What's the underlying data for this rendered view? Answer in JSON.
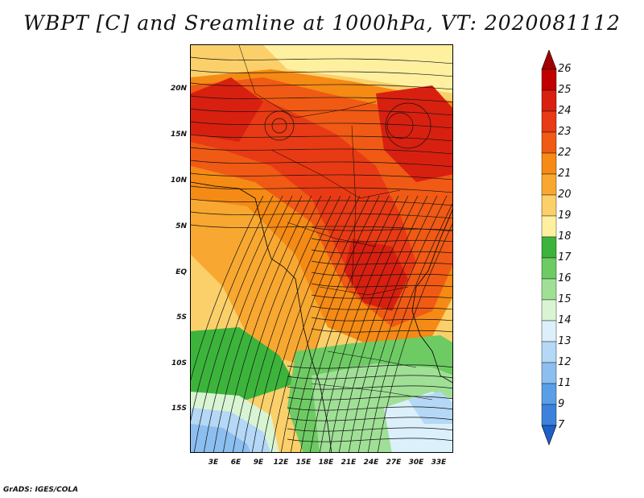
{
  "title": "WBPT [C] and Sreamline at 1000hPa, VT: 2020081112",
  "footer": "GrADS: IGES/COLA",
  "map": {
    "variable": "WBPT [C]",
    "overlay": "Streamline",
    "level": "1000hPa",
    "valid_time": "2020081112",
    "lat_labels": [
      "20N",
      "15N",
      "10N",
      "5N",
      "EQ",
      "5S",
      "10S",
      "15S"
    ],
    "lon_labels": [
      "3E",
      "6E",
      "9E",
      "12E",
      "15E",
      "18E",
      "21E",
      "24E",
      "27E",
      "30E",
      "33E"
    ],
    "lat_range": [
      -19.5,
      24.5
    ],
    "lon_range": [
      0,
      35
    ]
  },
  "colorbar": {
    "labels": [
      "26",
      "25",
      "24",
      "23",
      "22",
      "21",
      "20",
      "19",
      "18",
      "17",
      "16",
      "15",
      "14",
      "13",
      "12",
      "11",
      "9",
      "7"
    ],
    "colors": {
      "above": "#a00000",
      "c26": "#c00000",
      "c25": "#d82010",
      "c24": "#e83a14",
      "c23": "#f05a14",
      "c22": "#f58a14",
      "c21": "#f8a830",
      "c20": "#fbd06a",
      "c19": "#fff0a0",
      "c18": "#3cb43c",
      "c17": "#6ecb64",
      "c16": "#a0e096",
      "c15": "#d8f4d2",
      "c14": "#dcf0fb",
      "c13": "#b4d8f6",
      "c12": "#8cbef0",
      "c11": "#5a9ee6",
      "c9": "#3c82dc",
      "c7": "#1e60c8"
    }
  }
}
